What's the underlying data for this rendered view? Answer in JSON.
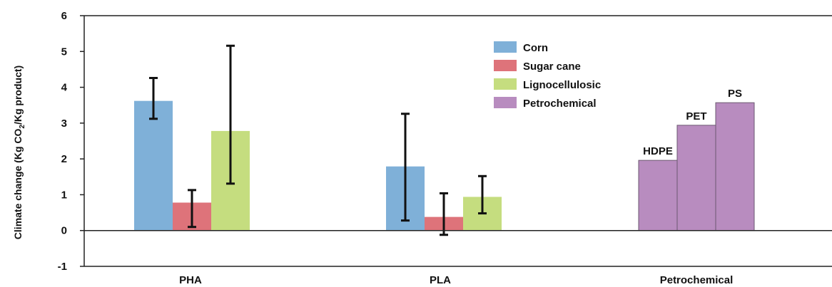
{
  "chart_data": {
    "type": "bar",
    "categories": [
      "PHA",
      "PLA",
      "Petrochemical"
    ],
    "ylabel_parts": [
      "Climate change (Kg CO",
      "2",
      "/Kg product)"
    ],
    "ylim": [
      -1,
      6
    ],
    "yticks": [
      "-1",
      "0",
      "1",
      "2",
      "3",
      "4",
      "5",
      "6"
    ],
    "legend_position": "top-center",
    "series": [
      {
        "name": "Corn",
        "color": "#7fb0d8",
        "values": [
          3.62,
          1.79,
          null
        ],
        "error_low": [
          3.12,
          0.28,
          null
        ],
        "error_high": [
          4.26,
          3.26,
          null
        ]
      },
      {
        "name": "Sugar cane",
        "color": "#de737a",
        "values": [
          0.78,
          0.38,
          null
        ],
        "error_low": [
          0.1,
          -0.12,
          null
        ],
        "error_high": [
          1.13,
          1.04,
          null
        ]
      },
      {
        "name": "Lignocellulosic",
        "color": "#c5dd7f",
        "values": [
          2.78,
          0.94,
          null
        ],
        "error_low": [
          1.31,
          0.48,
          null
        ],
        "error_high": [
          5.16,
          1.52,
          null
        ]
      },
      {
        "name": "Petrochemical",
        "color": "#b88cbf",
        "values": [
          null,
          null,
          null
        ]
      }
    ],
    "petrochemical_bars": [
      {
        "label": "HDPE",
        "value": 1.96
      },
      {
        "label": "PET",
        "value": 2.94
      },
      {
        "label": "PS",
        "value": 3.57
      }
    ]
  }
}
